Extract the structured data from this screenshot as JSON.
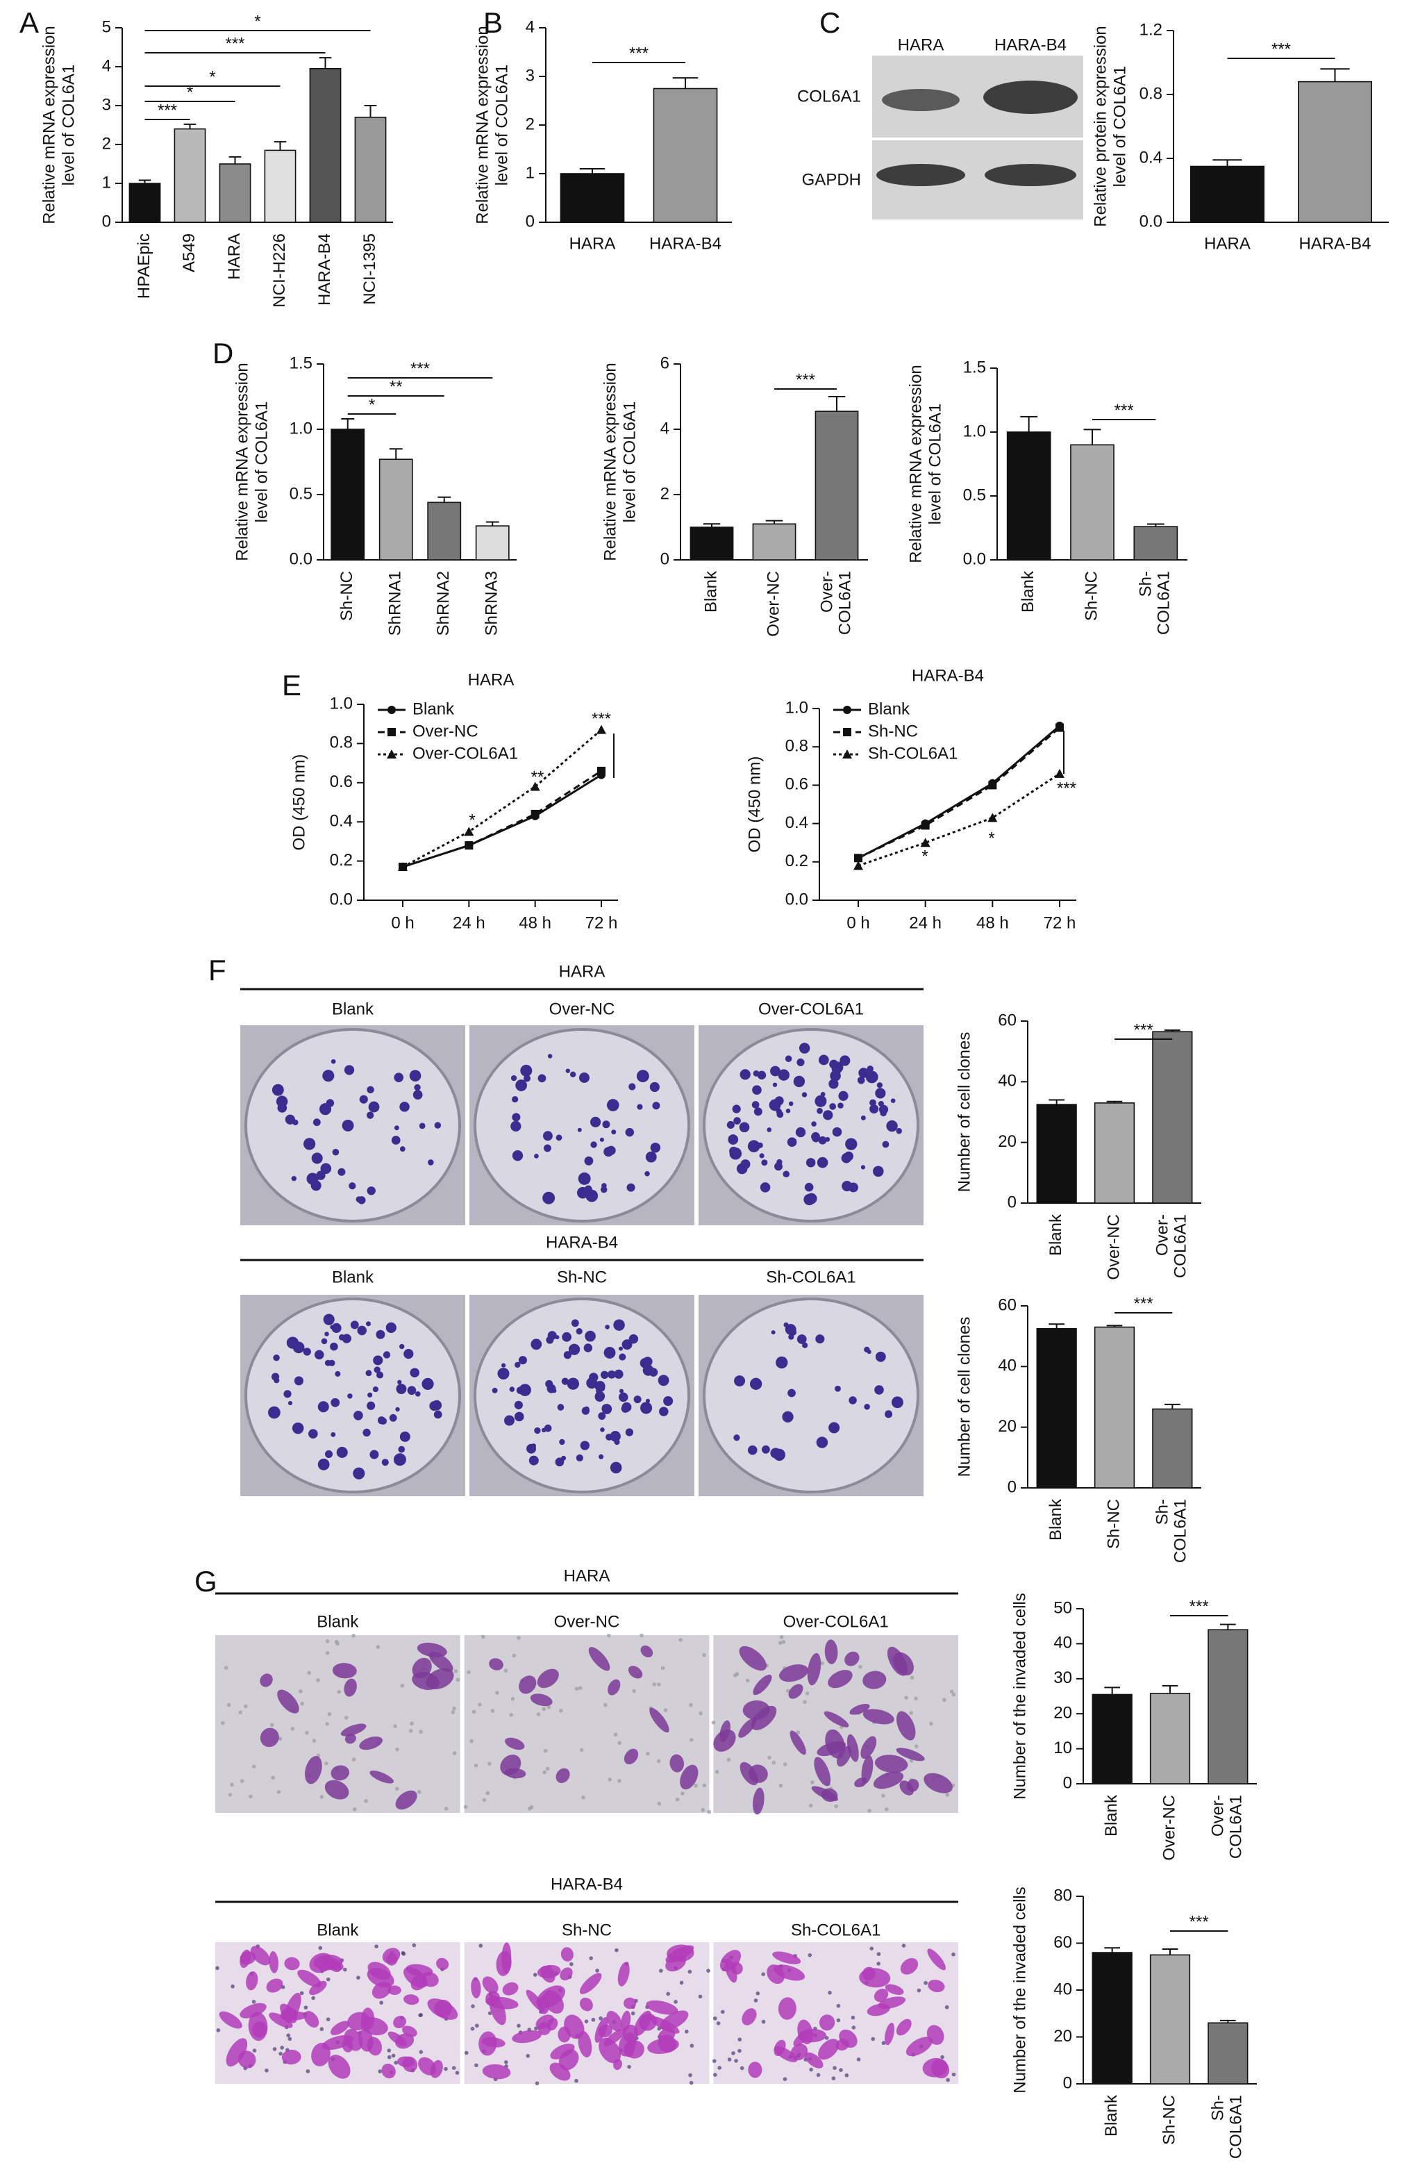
{
  "panel_labels": [
    "A",
    "B",
    "C",
    "D",
    "E",
    "F",
    "G"
  ],
  "blot": {
    "lanes": [
      "HARA",
      "HARA-B4"
    ],
    "bands": [
      "COL6A1",
      "GAPDH"
    ]
  },
  "colony_assay": [
    {
      "title": "HARA",
      "labels": [
        "Blank",
        "Over-NC",
        "Over-COL6A1"
      ]
    },
    {
      "title": "HARA-B4",
      "labels": [
        "Blank",
        "Sh-NC",
        "Sh-COL6A1"
      ]
    }
  ],
  "invasion_assay": [
    {
      "title": "HARA",
      "labels": [
        "Blank",
        "Over-NC",
        "Over-COL6A1"
      ]
    },
    {
      "title": "HARA-B4",
      "labels": [
        "Blank",
        "Sh-NC",
        "Sh-COL6A1"
      ]
    }
  ],
  "chart_data": [
    {
      "type": "bar",
      "ylabel": [
        "Relative mRNA expression",
        "level of COL6A1"
      ],
      "categories": [
        "HPAEpic",
        "A549",
        "HARA",
        "NCI-H226",
        "HARA-B4",
        "NCI-1395"
      ],
      "values": [
        1.0,
        2.4,
        1.5,
        1.85,
        3.95,
        2.7
      ],
      "errors": [
        0.08,
        0.12,
        0.18,
        0.22,
        0.28,
        0.3
      ],
      "colors": [
        "#111111",
        "#b8b8b8",
        "#8a8a8a",
        "#e0e0e0",
        "#555555",
        "#9a9a9a"
      ],
      "ylim": [
        0,
        5
      ],
      "yticks": [
        0,
        1,
        2,
        3,
        4,
        5
      ],
      "annotations": [
        "*",
        "***",
        "*",
        "*",
        "***"
      ]
    },
    {
      "type": "bar",
      "ylabel": [
        "Relative mRNA expression",
        "level of COL6A1"
      ],
      "categories": [
        "HARA",
        "HARA-B4"
      ],
      "values": [
        1.0,
        2.75
      ],
      "errors": [
        0.1,
        0.22
      ],
      "colors": [
        "#111111",
        "#999999"
      ],
      "ylim": [
        0,
        4
      ],
      "yticks": [
        0,
        1,
        2,
        3,
        4
      ],
      "annotations": [
        "***"
      ]
    },
    {
      "type": "bar",
      "ylabel": [
        "Relative protein expression",
        "level of COL6A1"
      ],
      "categories": [
        "HARA",
        "HARA-B4"
      ],
      "values": [
        0.35,
        0.88
      ],
      "errors": [
        0.04,
        0.08
      ],
      "colors": [
        "#111111",
        "#999999"
      ],
      "ylim": [
        0,
        1.2
      ],
      "yticks": [
        {
          "value": 0,
          "label": "0.0"
        },
        0.4,
        0.8,
        1.2
      ],
      "annotations": [
        "***"
      ]
    },
    {
      "type": "bar",
      "ylabel": [
        "Relative mRNA expression",
        "level of COL6A1"
      ],
      "categories": [
        "Sh-NC",
        "ShRNA1",
        "ShRNA2",
        "ShRNA3"
      ],
      "values": [
        1.0,
        0.77,
        0.44,
        0.26
      ],
      "errors": [
        0.08,
        0.08,
        0.04,
        0.03
      ],
      "colors": [
        "#111111",
        "#aaaaaa",
        "#777777",
        "#dddddd"
      ],
      "ylim": [
        0,
        1.5
      ],
      "yticks": [
        {
          "value": 0,
          "label": "0.0"
        },
        0.5,
        {
          "value": 1,
          "label": "1.0"
        },
        1.5
      ],
      "annotations": [
        "*",
        "**",
        "***"
      ]
    },
    {
      "type": "bar",
      "ylabel": [
        "Relative mRNA expression",
        "level of COL6A1"
      ],
      "categories": [
        "Blank",
        "Over-NC",
        [
          "Over-",
          "COL6A1"
        ]
      ],
      "values": [
        1.0,
        1.1,
        4.55
      ],
      "errors": [
        0.1,
        0.1,
        0.45
      ],
      "colors": [
        "#111111",
        "#aaaaaa",
        "#777777"
      ],
      "ylim": [
        0,
        6
      ],
      "yticks": [
        0,
        2,
        4,
        6
      ],
      "annotations": [
        "***"
      ]
    },
    {
      "type": "bar",
      "ylabel": [
        "Relative mRNA expression",
        "level of COL6A1"
      ],
      "categories": [
        "Blank",
        "Sh-NC",
        [
          "Sh-",
          "COL6A1"
        ]
      ],
      "values": [
        1.0,
        0.9,
        0.26
      ],
      "errors": [
        0.12,
        0.12,
        0.02
      ],
      "colors": [
        "#111111",
        "#aaaaaa",
        "#777777"
      ],
      "ylim": [
        0,
        1.5
      ],
      "yticks": [
        {
          "value": 0,
          "label": "0.0"
        },
        0.5,
        {
          "value": 1,
          "label": "1.0"
        },
        1.5
      ],
      "annotations": [
        "***"
      ]
    },
    {
      "type": "line",
      "title": "HARA",
      "ylabel": "OD (450 nm)",
      "categories": [
        "0 h",
        "24 h",
        "48 h",
        "72 h"
      ],
      "series": [
        {
          "name": "Blank",
          "color": "#111111",
          "linestyle": "solid",
          "marker": "circle",
          "values": [
            0.17,
            0.28,
            0.43,
            0.64
          ]
        },
        {
          "name": "Over-NC",
          "color": "#111111",
          "linestyle": "dashed",
          "marker": "square",
          "values": [
            0.17,
            0.28,
            0.44,
            0.66
          ]
        },
        {
          "name": "Over-COL6A1",
          "color": "#111111",
          "linestyle": "dotted",
          "marker": "triangle",
          "values": [
            0.17,
            0.35,
            0.58,
            0.87
          ]
        }
      ],
      "ylim": [
        0,
        1.0
      ],
      "yticks": [
        {
          "value": 0,
          "label": "0.0"
        },
        0.2,
        0.4,
        0.6,
        0.8,
        {
          "value": 1,
          "label": "1.0"
        }
      ],
      "annotations": [
        "*",
        "**",
        "***"
      ]
    },
    {
      "type": "line",
      "title": "HARA-B4",
      "ylabel": "OD (450 nm)",
      "categories": [
        "0 h",
        "24 h",
        "48 h",
        "72 h"
      ],
      "series": [
        {
          "name": "Blank",
          "color": "#111111",
          "linestyle": "solid",
          "marker": "circle",
          "values": [
            0.22,
            0.4,
            0.61,
            0.91
          ]
        },
        {
          "name": "Sh-NC",
          "color": "#111111",
          "linestyle": "dashed",
          "marker": "square",
          "values": [
            0.22,
            0.39,
            0.6,
            0.9
          ]
        },
        {
          "name": "Sh-COL6A1",
          "color": "#111111",
          "linestyle": "dotted",
          "marker": "triangle",
          "values": [
            0.18,
            0.3,
            0.43,
            0.66
          ]
        }
      ],
      "ylim": [
        0,
        1.0
      ],
      "yticks": [
        {
          "value": 0,
          "label": "0.0"
        },
        0.2,
        0.4,
        0.6,
        0.8,
        {
          "value": 1,
          "label": "1.0"
        }
      ],
      "annotations": [
        "*",
        "*",
        "***"
      ]
    },
    {
      "type": "bar",
      "ylabel": [
        "Number of cell clones"
      ],
      "categories": [
        "Blank",
        "Over-NC",
        [
          "Over-",
          "COL6A1"
        ]
      ],
      "values": [
        32.5,
        33,
        56.5
      ],
      "errors": [
        1.5,
        0.5,
        0.5
      ],
      "colors": [
        "#111111",
        "#aaaaaa",
        "#777777"
      ],
      "ylim": [
        0,
        60
      ],
      "yticks": [
        0,
        20,
        40,
        60
      ],
      "annotations": [
        "***"
      ]
    },
    {
      "type": "bar",
      "ylabel": [
        "Number of cell clones"
      ],
      "categories": [
        "Blank",
        "Sh-NC",
        [
          "Sh-",
          "COL6A1"
        ]
      ],
      "values": [
        52.5,
        53,
        26
      ],
      "errors": [
        1.5,
        0.5,
        1.5
      ],
      "colors": [
        "#111111",
        "#aaaaaa",
        "#777777"
      ],
      "ylim": [
        0,
        60
      ],
      "yticks": [
        0,
        20,
        40,
        60
      ],
      "annotations": [
        "***"
      ]
    },
    {
      "type": "bar",
      "ylabel": [
        "Number of the invaded cells"
      ],
      "categories": [
        "Blank",
        "Over-NC",
        [
          "Over-",
          "COL6A1"
        ]
      ],
      "values": [
        25.5,
        25.8,
        44
      ],
      "errors": [
        2,
        2.2,
        1.5
      ],
      "colors": [
        "#111111",
        "#aaaaaa",
        "#777777"
      ],
      "ylim": [
        0,
        50
      ],
      "yticks": [
        0,
        10,
        20,
        30,
        40,
        50
      ],
      "annotations": [
        "***"
      ]
    },
    {
      "type": "bar",
      "ylabel": [
        "Number of the invaded cells"
      ],
      "categories": [
        "Blank",
        "Sh-NC",
        [
          "Sh-",
          "COL6A1"
        ]
      ],
      "values": [
        56,
        55,
        26
      ],
      "errors": [
        2,
        2.5,
        1
      ],
      "colors": [
        "#111111",
        "#aaaaaa",
        "#777777"
      ],
      "ylim": [
        0,
        80
      ],
      "yticks": [
        0,
        20,
        40,
        60,
        80
      ],
      "annotations": [
        "***"
      ]
    }
  ]
}
